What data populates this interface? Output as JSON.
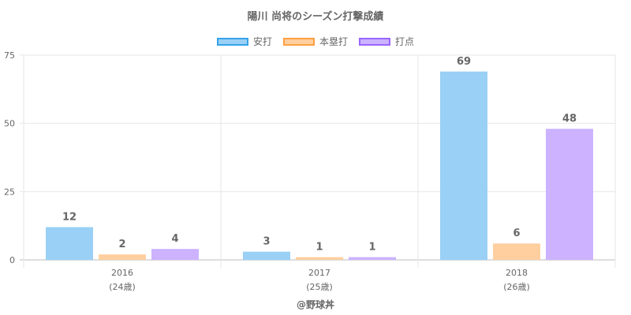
{
  "chart_data": {
    "type": "bar",
    "title": "陽川 尚将のシーズン打撃成績",
    "categories": [
      "2016",
      "2017",
      "2018"
    ],
    "category_sublabels": [
      "(24歳)",
      "(25歳)",
      "(26歳)"
    ],
    "series": [
      {
        "name": "安打",
        "values": [
          12,
          3,
          69
        ],
        "color": "#9ad0f5",
        "border": "#36a2eb"
      },
      {
        "name": "本塁打",
        "values": [
          2,
          1,
          6
        ],
        "color": "#ffcf9f",
        "border": "#ff9f40"
      },
      {
        "name": "打点",
        "values": [
          4,
          1,
          48
        ],
        "color": "#ccb2ff",
        "border": "#9966ff"
      }
    ],
    "ylim": [
      0,
      75
    ],
    "yticks": [
      0,
      25,
      50,
      75
    ],
    "grid": true,
    "legend_position": "top"
  },
  "source_label": "@野球丼"
}
